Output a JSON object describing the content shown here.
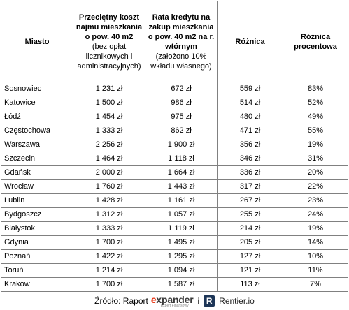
{
  "table": {
    "headers": {
      "city": "Miasto",
      "rent_main": "Przeciętny koszt najmu mieszkania o pow. 40 m2",
      "rent_note": "(bez opłat licznikowych i administracyjnych)",
      "loan_main": "Rata kredytu na zakup mieszkania o pow. 40 m2 na r. wtórnym",
      "loan_note": "(założono 10% wkładu własnego)",
      "diff": "Różnica",
      "diff_pct": "Różnica procentowa"
    },
    "rows": [
      {
        "city": "Sosnowiec",
        "rent": "1 231 zł",
        "loan": "672 zł",
        "diff": "559 zł",
        "pct": "83%"
      },
      {
        "city": "Katowice",
        "rent": "1 500 zł",
        "loan": "986 zł",
        "diff": "514 zł",
        "pct": "52%"
      },
      {
        "city": "Łódź",
        "rent": "1 454 zł",
        "loan": "975 zł",
        "diff": "480 zł",
        "pct": "49%"
      },
      {
        "city": "Częstochowa",
        "rent": "1 333 zł",
        "loan": "862 zł",
        "diff": "471 zł",
        "pct": "55%"
      },
      {
        "city": "Warszawa",
        "rent": "2 256 zł",
        "loan": "1 900 zł",
        "diff": "356 zł",
        "pct": "19%"
      },
      {
        "city": "Szczecin",
        "rent": "1 464 zł",
        "loan": "1 118 zł",
        "diff": "346 zł",
        "pct": "31%"
      },
      {
        "city": "Gdańsk",
        "rent": "2 000 zł",
        "loan": "1 664 zł",
        "diff": "336 zł",
        "pct": "20%"
      },
      {
        "city": "Wrocław",
        "rent": "1 760 zł",
        "loan": "1 443 zł",
        "diff": "317 zł",
        "pct": "22%"
      },
      {
        "city": "Lublin",
        "rent": "1 428 zł",
        "loan": "1 161 zł",
        "diff": "267 zł",
        "pct": "23%"
      },
      {
        "city": "Bydgoszcz",
        "rent": "1 312 zł",
        "loan": "1 057 zł",
        "diff": "255 zł",
        "pct": "24%"
      },
      {
        "city": "Białystok",
        "rent": "1 333 zł",
        "loan": "1 119 zł",
        "diff": "214 zł",
        "pct": "19%"
      },
      {
        "city": "Gdynia",
        "rent": "1 700 zł",
        "loan": "1 495 zł",
        "diff": "205 zł",
        "pct": "14%"
      },
      {
        "city": "Poznań",
        "rent": "1 422 zł",
        "loan": "1 295 zł",
        "diff": "127 zł",
        "pct": "10%"
      },
      {
        "city": "Toruń",
        "rent": "1 214 zł",
        "loan": "1 094 zł",
        "diff": "121 zł",
        "pct": "11%"
      },
      {
        "city": "Kraków",
        "rent": "1 700 zł",
        "loan": "1 587 zł",
        "diff": "113 zł",
        "pct": "7%"
      }
    ]
  },
  "footer": {
    "source_label": "Źródło: Raport",
    "expander_word_prefix": "e",
    "expander_word_rest": "xpander",
    "expander_subtitle": "Expert Finansowy",
    "and_label": "i",
    "rentier_icon_letter": "R",
    "rentier_name": "Rentier.io",
    "expander_accent_color": "#e63312",
    "rentier_brand_color": "#1d3557"
  }
}
